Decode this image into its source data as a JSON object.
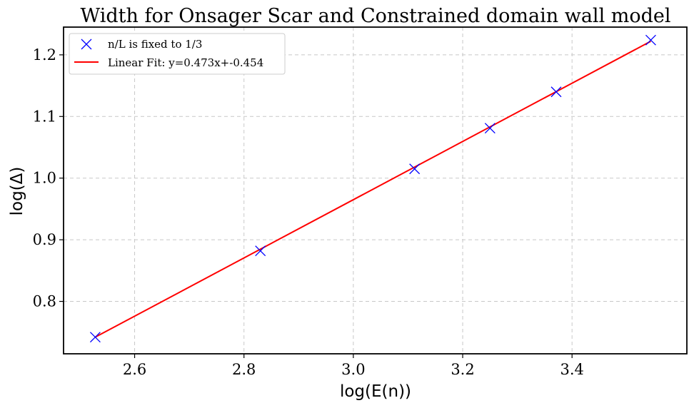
{
  "chart_data": {
    "type": "scatter",
    "title": "Width for Onsager Scar and Constrained domain wall model",
    "xlabel": "log(E(n))",
    "ylabel": "log(Δ)",
    "xlim": [
      2.47,
      3.61
    ],
    "ylim": [
      0.715,
      1.245
    ],
    "xticks": [
      2.6,
      2.8,
      3.0,
      3.2,
      3.4
    ],
    "xtick_labels": [
      "2.6",
      "2.8",
      "3.0",
      "3.2",
      "3.4"
    ],
    "yticks": [
      0.8,
      0.9,
      1.0,
      1.1,
      1.2
    ],
    "ytick_labels": [
      "0.8",
      "0.9",
      "1.0",
      "1.1",
      "1.2"
    ],
    "grid": true,
    "legend_position": "top-left",
    "series": [
      {
        "name": "n/L is fixed to 1/3",
        "kind": "scatter",
        "marker": "x",
        "color": "#0000ff",
        "x": [
          2.528,
          2.83,
          3.112,
          3.25,
          3.371,
          3.544
        ],
        "y": [
          0.742,
          0.882,
          1.015,
          1.081,
          1.14,
          1.224
        ]
      },
      {
        "name": "Linear Fit: y=0.473x+-0.454",
        "kind": "line",
        "color": "#ff0000",
        "x": [
          2.528,
          3.544
        ],
        "y": [
          0.742,
          1.222
        ]
      }
    ]
  }
}
